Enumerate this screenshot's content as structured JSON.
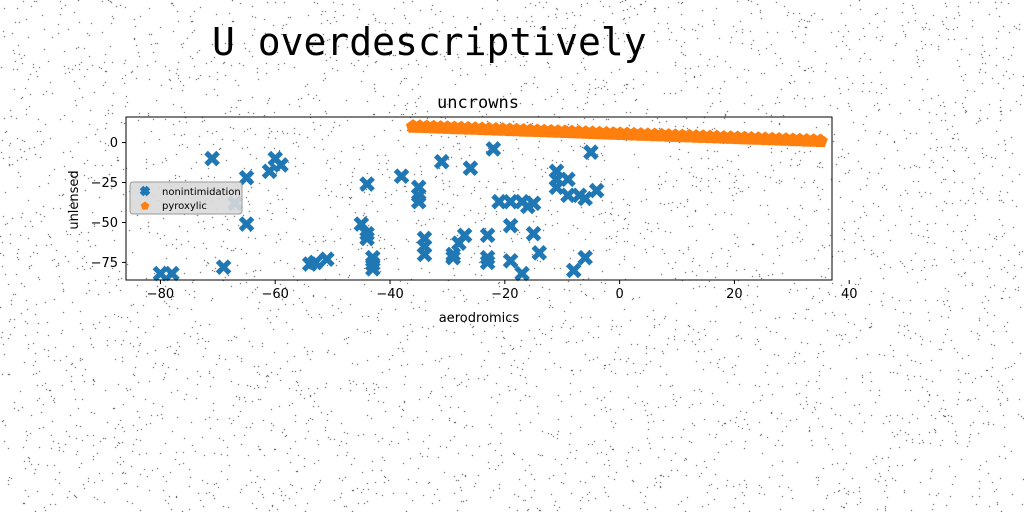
{
  "suptitle": "U overdescriptively",
  "chart_data": {
    "type": "scatter",
    "title": "uncrowns",
    "xlabel": "aerodromics",
    "ylabel": "unlensed",
    "xlim": [
      -86,
      37
    ],
    "ylim": [
      -86,
      16
    ],
    "xticks": [
      -80,
      -60,
      -40,
      -20,
      0,
      20,
      40
    ],
    "yticks": [
      0,
      -25,
      -50,
      -75
    ],
    "grid": false,
    "legend_position": "center-left",
    "series": [
      {
        "name": "nonintimidation",
        "marker": "x-filled",
        "color": "#1f77b4",
        "points": [
          [
            -80,
            -82
          ],
          [
            -78,
            -82
          ],
          [
            -71,
            -10
          ],
          [
            -69,
            -78
          ],
          [
            -67,
            -38
          ],
          [
            -65,
            -22
          ],
          [
            -65,
            -51
          ],
          [
            -61,
            -18
          ],
          [
            -60,
            -10
          ],
          [
            -59,
            -14
          ],
          [
            -54,
            -76
          ],
          [
            -53,
            -75
          ],
          [
            -51,
            -73
          ],
          [
            -45,
            -51
          ],
          [
            -44,
            -57
          ],
          [
            -44,
            -60
          ],
          [
            -44,
            -26
          ],
          [
            -43,
            -72
          ],
          [
            -43,
            -76
          ],
          [
            -43,
            -79
          ],
          [
            -38,
            -21
          ],
          [
            -35,
            -37
          ],
          [
            -35,
            -33
          ],
          [
            -35,
            -28
          ],
          [
            -34,
            -70
          ],
          [
            -34,
            -60
          ],
          [
            -34,
            -65
          ],
          [
            -31,
            -12
          ],
          [
            -29,
            -70
          ],
          [
            -29,
            -72
          ],
          [
            -28,
            -63
          ],
          [
            -27,
            -58
          ],
          [
            -26,
            -16
          ],
          [
            -23,
            -58
          ],
          [
            -23,
            -72
          ],
          [
            -23,
            -75
          ],
          [
            -22,
            -4
          ],
          [
            -21,
            -37
          ],
          [
            -19,
            -37
          ],
          [
            -19,
            -52
          ],
          [
            -19,
            -74
          ],
          [
            -17,
            -37
          ],
          [
            -17,
            -82
          ],
          [
            -16,
            -40
          ],
          [
            -15,
            -38
          ],
          [
            -15,
            -57
          ],
          [
            -14,
            -69
          ],
          [
            -11,
            -18
          ],
          [
            -11,
            -23
          ],
          [
            -11,
            -28
          ],
          [
            -9,
            -23
          ],
          [
            -9,
            -33
          ],
          [
            -8,
            -80
          ],
          [
            -7,
            -33
          ],
          [
            -6,
            -35
          ],
          [
            -6,
            -72
          ],
          [
            -5,
            -6
          ],
          [
            -4,
            -30
          ]
        ]
      },
      {
        "name": "pyroxylic",
        "marker": "pentagon",
        "color": "#ff7f0e",
        "line": {
          "x_from": -36,
          "x_to": 35,
          "y_from": 10,
          "y_to": 1,
          "count": 60
        }
      }
    ]
  }
}
